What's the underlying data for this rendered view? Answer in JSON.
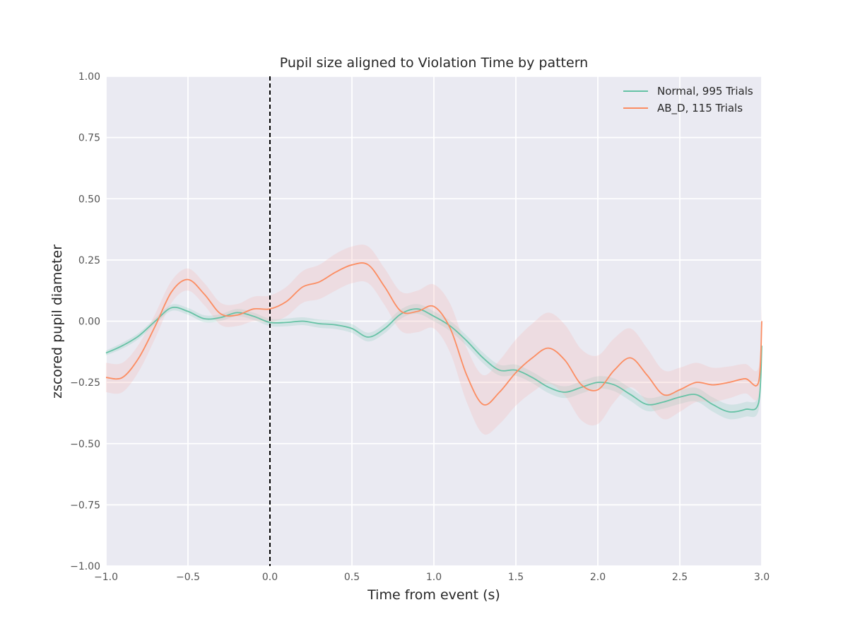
{
  "chart_data": {
    "type": "line",
    "title": "Pupil size aligned to Violation Time by pattern",
    "xlabel": "Time from event (s)",
    "ylabel": "zscored pupil diameter",
    "xlim": [
      -1.0,
      3.0
    ],
    "ylim": [
      -1.0,
      1.0
    ],
    "x_ticks": [
      -1.0,
      -0.5,
      0.0,
      0.5,
      1.0,
      1.5,
      2.0,
      2.5,
      3.0
    ],
    "x_tick_labels": [
      "−1.0",
      "−0.5",
      "0.0",
      "0.5",
      "1.0",
      "1.5",
      "2.0",
      "2.5",
      "3.0"
    ],
    "y_ticks": [
      1.0,
      0.75,
      0.5,
      0.25,
      0.0,
      -0.25,
      -0.5,
      -0.75,
      -1.0
    ],
    "y_tick_labels": [
      "1.00",
      "0.75",
      "0.50",
      "0.25",
      "0.00",
      "−0.25",
      "−0.50",
      "−0.75",
      "−1.00"
    ],
    "grid": true,
    "legend_position": "top-right",
    "event_line_x": 0.0,
    "series": [
      {
        "name": "Normal, 995 Trials",
        "color": "#66c2a5",
        "band_color": "#66c2a5",
        "x": [
          -1.0,
          -0.9,
          -0.8,
          -0.7,
          -0.6,
          -0.5,
          -0.4,
          -0.3,
          -0.2,
          -0.1,
          0.0,
          0.1,
          0.2,
          0.3,
          0.4,
          0.5,
          0.6,
          0.7,
          0.8,
          0.9,
          1.0,
          1.1,
          1.2,
          1.3,
          1.4,
          1.5,
          1.6,
          1.7,
          1.8,
          1.9,
          2.0,
          2.1,
          2.2,
          2.3,
          2.4,
          2.5,
          2.6,
          2.7,
          2.8,
          2.9,
          2.98,
          3.0
        ],
        "y": [
          -0.13,
          -0.1,
          -0.06,
          0.0,
          0.055,
          0.04,
          0.01,
          0.015,
          0.035,
          0.02,
          -0.005,
          -0.005,
          0.0,
          -0.01,
          -0.015,
          -0.03,
          -0.065,
          -0.03,
          0.03,
          0.05,
          0.02,
          -0.02,
          -0.08,
          -0.15,
          -0.2,
          -0.2,
          -0.23,
          -0.27,
          -0.29,
          -0.27,
          -0.25,
          -0.26,
          -0.3,
          -0.34,
          -0.33,
          -0.31,
          -0.3,
          -0.34,
          -0.37,
          -0.36,
          -0.335,
          -0.1
        ],
        "err": [
          0.01,
          0.012,
          0.012,
          0.012,
          0.013,
          0.014,
          0.014,
          0.014,
          0.015,
          0.015,
          0.015,
          0.016,
          0.016,
          0.017,
          0.017,
          0.018,
          0.018,
          0.019,
          0.019,
          0.02,
          0.02,
          0.021,
          0.021,
          0.022,
          0.022,
          0.023,
          0.023,
          0.024,
          0.024,
          0.025,
          0.025,
          0.026,
          0.026,
          0.027,
          0.027,
          0.028,
          0.028,
          0.029,
          0.03,
          0.03,
          0.03,
          0.03
        ]
      },
      {
        "name": "AB_D, 115 Trials",
        "color": "#fc8d62",
        "band_color": "#f4b6b6",
        "x": [
          -1.0,
          -0.9,
          -0.8,
          -0.7,
          -0.6,
          -0.5,
          -0.4,
          -0.3,
          -0.2,
          -0.1,
          0.0,
          0.1,
          0.2,
          0.3,
          0.4,
          0.5,
          0.6,
          0.7,
          0.8,
          0.9,
          1.0,
          1.1,
          1.2,
          1.3,
          1.4,
          1.5,
          1.6,
          1.7,
          1.8,
          1.9,
          2.0,
          2.1,
          2.2,
          2.3,
          2.4,
          2.5,
          2.6,
          2.7,
          2.8,
          2.9,
          2.98,
          3.0
        ],
        "y": [
          -0.23,
          -0.23,
          -0.15,
          -0.02,
          0.12,
          0.17,
          0.11,
          0.03,
          0.025,
          0.05,
          0.05,
          0.08,
          0.14,
          0.16,
          0.2,
          0.23,
          0.23,
          0.14,
          0.04,
          0.04,
          0.06,
          -0.03,
          -0.22,
          -0.34,
          -0.29,
          -0.21,
          -0.15,
          -0.11,
          -0.16,
          -0.26,
          -0.28,
          -0.2,
          -0.15,
          -0.22,
          -0.3,
          -0.28,
          -0.25,
          -0.26,
          -0.25,
          -0.235,
          -0.25,
          0.0
        ],
        "err": [
          0.06,
          0.06,
          0.055,
          0.05,
          0.045,
          0.045,
          0.045,
          0.045,
          0.045,
          0.05,
          0.055,
          0.06,
          0.065,
          0.07,
          0.075,
          0.075,
          0.075,
          0.075,
          0.08,
          0.085,
          0.09,
          0.1,
          0.11,
          0.12,
          0.13,
          0.135,
          0.14,
          0.145,
          0.145,
          0.145,
          0.14,
          0.13,
          0.12,
          0.11,
          0.1,
          0.09,
          0.08,
          0.07,
          0.065,
          0.06,
          0.06,
          0.06
        ]
      }
    ]
  }
}
